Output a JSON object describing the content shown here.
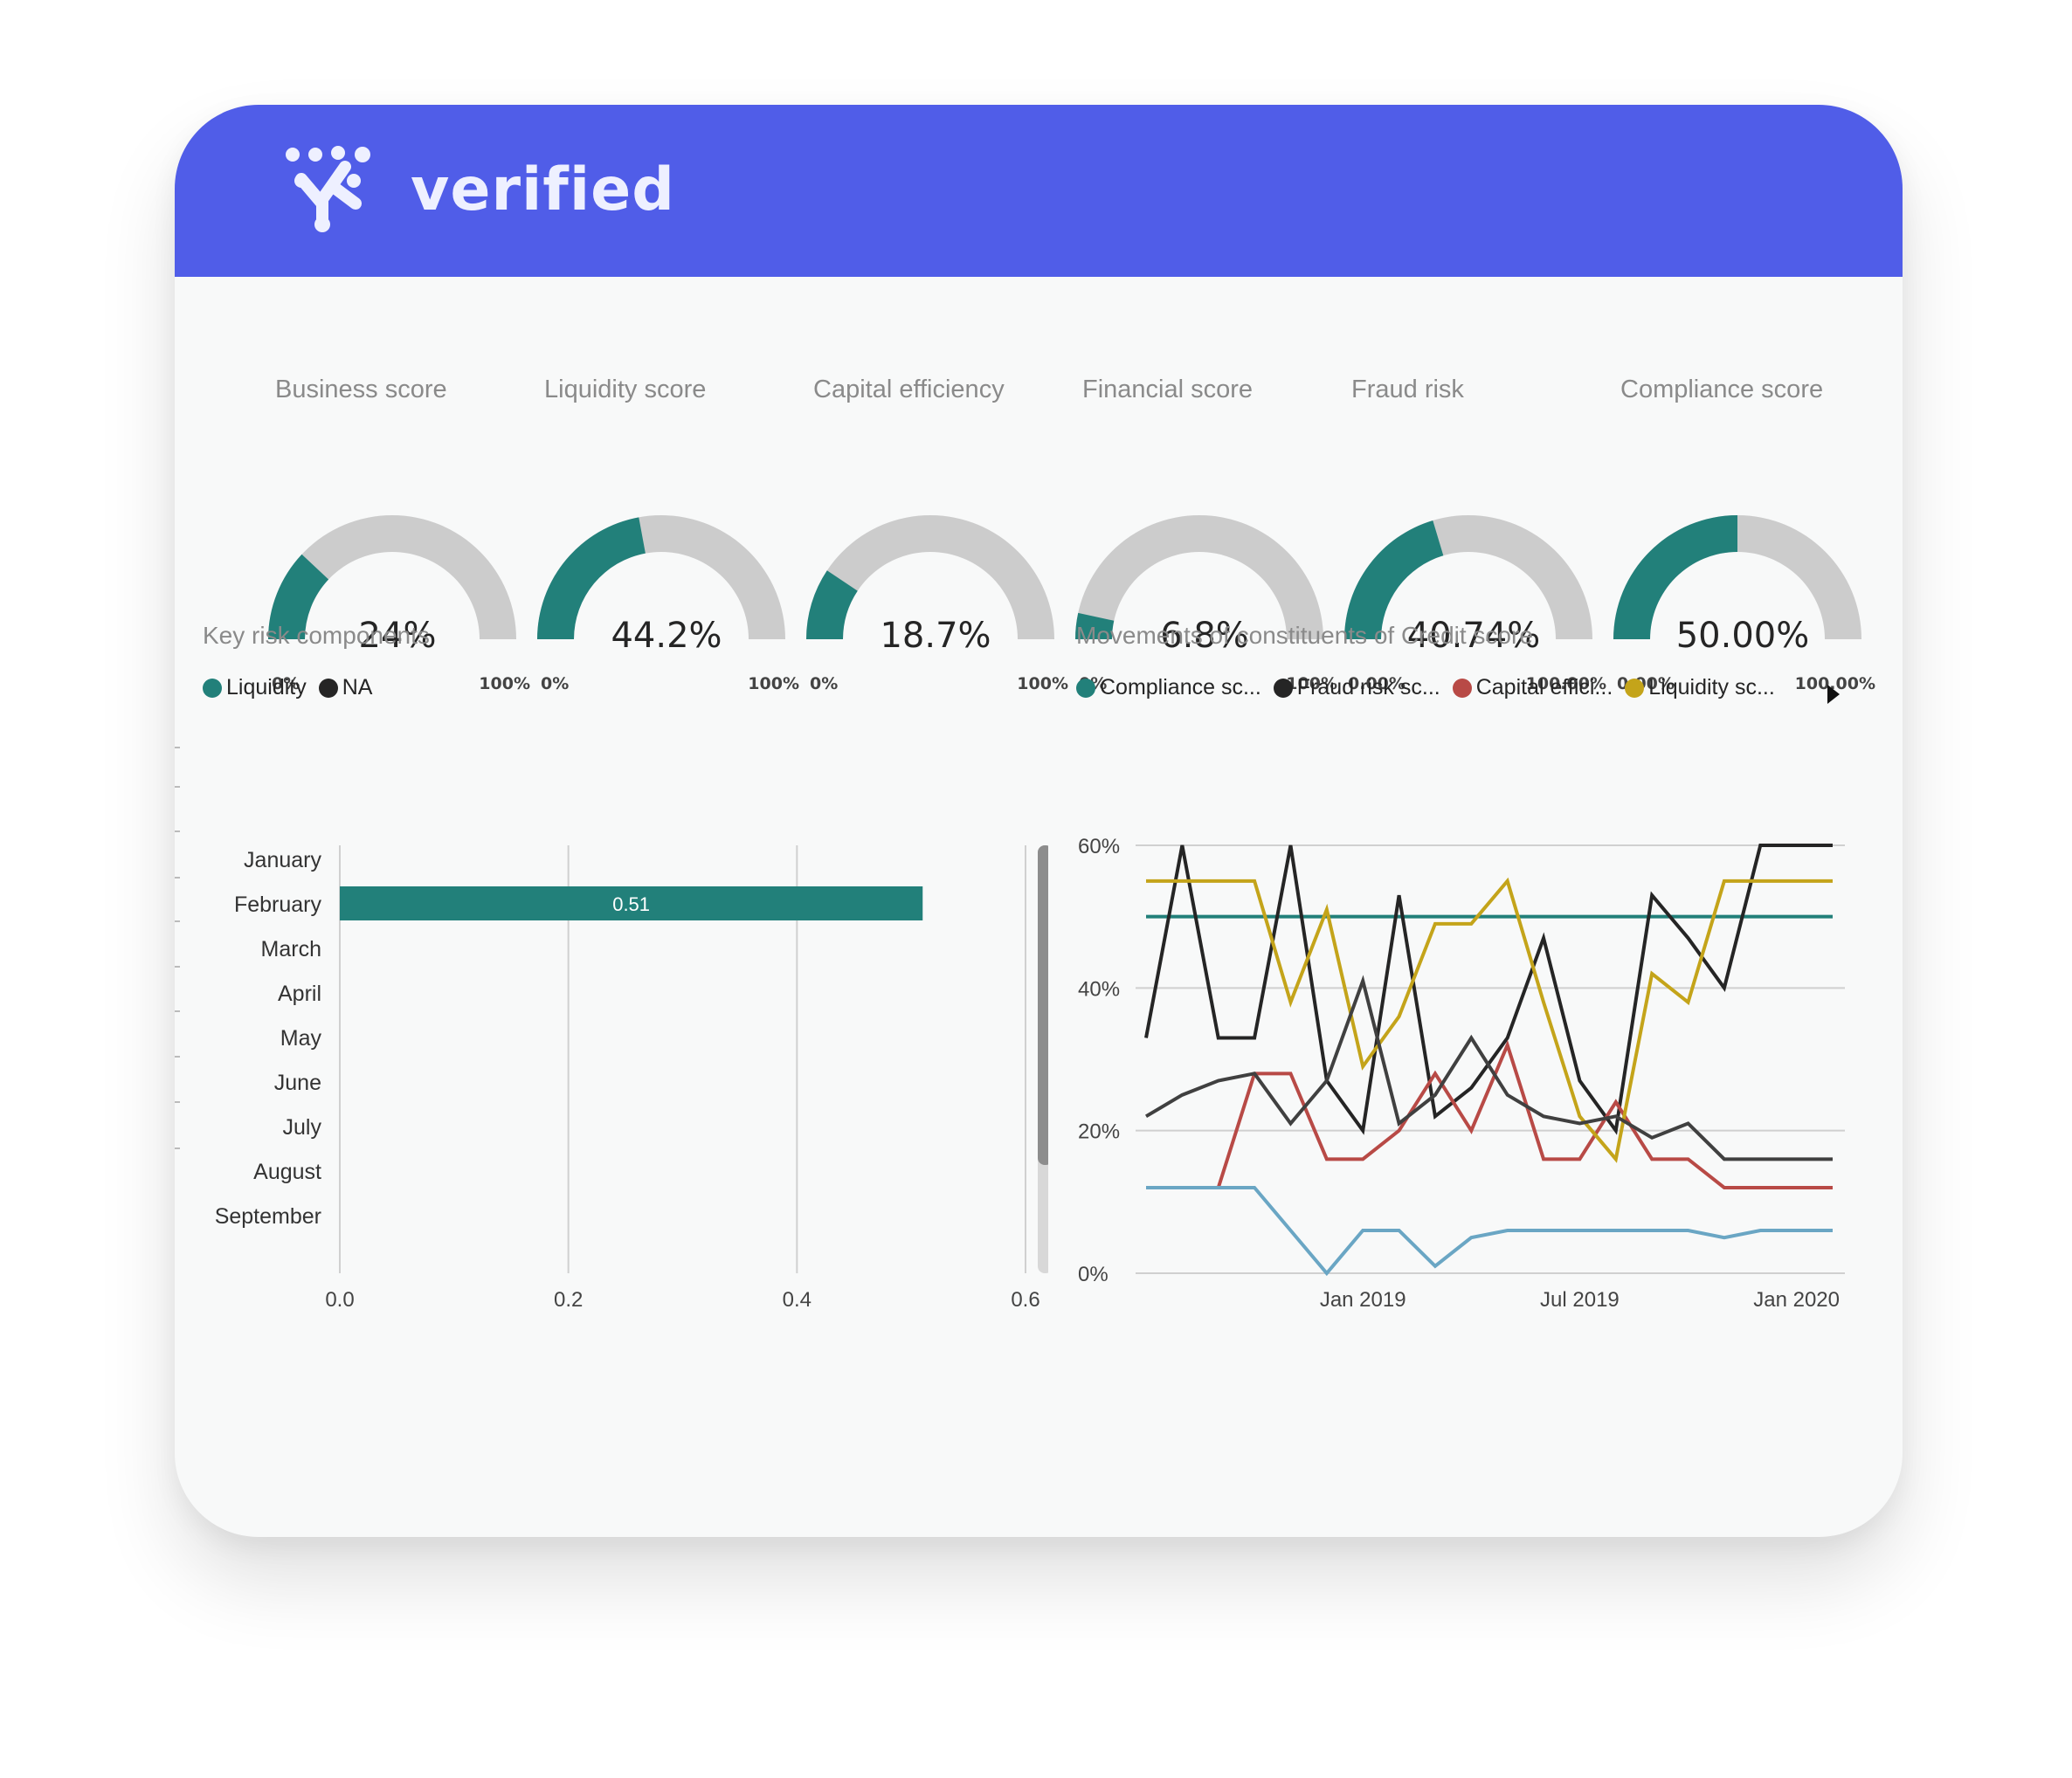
{
  "brand": {
    "name": "verified"
  },
  "colors": {
    "header": "#505de8",
    "teal": "#22807a",
    "track": "#cccccc"
  },
  "gauges": [
    {
      "title": "Business score",
      "value_label": "24%",
      "fraction": 0.24,
      "min_label": "0%",
      "max_label": "100%"
    },
    {
      "title": "Liquidity score",
      "value_label": "44.2%",
      "fraction": 0.442,
      "min_label": "0%",
      "max_label": "100%"
    },
    {
      "title": "Capital efficiency",
      "value_label": "18.7%",
      "fraction": 0.187,
      "min_label": "0%",
      "max_label": "100%"
    },
    {
      "title": "Financial score",
      "value_label": "6.8%",
      "fraction": 0.068,
      "min_label": "0%",
      "max_label": "100%"
    },
    {
      "title": "Fraud risk",
      "value_label": "40.74%",
      "fraction": 0.4074,
      "min_label": "0.00%",
      "max_label": "100.00%"
    },
    {
      "title": "Compliance score",
      "value_label": "50.00%",
      "fraction": 0.5,
      "min_label": "0.00%",
      "max_label": "100.00%"
    }
  ],
  "key_risk": {
    "title": "Key risk components",
    "legend": [
      {
        "label": "Liquidity",
        "color": "#22807a"
      },
      {
        "label": "NA",
        "color": "#252525"
      }
    ]
  },
  "movements": {
    "title": "Movements of constituents of Credit score",
    "legend": [
      {
        "label": "Compliance sc...",
        "color": "#22807a"
      },
      {
        "label": "Fraud risk sc...",
        "color": "#252525"
      },
      {
        "label": "Capital effici...",
        "color": "#b84a46"
      },
      {
        "label": "Liquidity sc...",
        "color": "#c4a41a"
      }
    ]
  },
  "chart_data": [
    {
      "type": "bar",
      "orientation": "horizontal",
      "categories": [
        "January",
        "February",
        "March",
        "April",
        "May",
        "June",
        "July",
        "August",
        "September"
      ],
      "series": [
        {
          "name": "Liquidity",
          "color": "#22807a",
          "values": [
            null,
            0.51,
            null,
            null,
            null,
            null,
            null,
            null,
            null
          ]
        }
      ],
      "data_labels": [
        "0.51"
      ],
      "xlim": [
        0,
        0.6
      ],
      "xticks": [
        "0.0",
        "0.2",
        "0.4",
        "0.6"
      ],
      "grid": true
    },
    {
      "type": "line",
      "x": [
        "2018-07",
        "2018-08",
        "2018-09",
        "2018-10",
        "2018-11",
        "2018-12",
        "2019-01",
        "2019-02",
        "2019-03",
        "2019-04",
        "2019-05",
        "2019-06",
        "2019-07",
        "2019-08",
        "2019-09",
        "2019-10",
        "2019-11",
        "2019-12",
        "2020-01",
        "2020-02"
      ],
      "xticks": [
        "Jan 2019",
        "Jul 2019",
        "Jan 2020"
      ],
      "yticks": [
        "0%",
        "20%",
        "40%",
        "60%"
      ],
      "ylim": [
        0,
        0.6
      ],
      "grid": true,
      "series": [
        {
          "name": "Compliance sc...",
          "color": "#22807a",
          "values": [
            0.5,
            0.5,
            0.5,
            0.5,
            0.5,
            0.5,
            0.5,
            0.5,
            0.5,
            0.5,
            0.5,
            0.5,
            0.5,
            0.5,
            0.5,
            0.5,
            0.5,
            0.5,
            0.5,
            0.5
          ]
        },
        {
          "name": "Fraud risk sc...",
          "color": "#252525",
          "values": [
            0.33,
            0.6,
            0.33,
            0.33,
            0.6,
            0.27,
            0.2,
            0.53,
            0.22,
            0.26,
            0.33,
            0.47,
            0.27,
            0.2,
            0.53,
            0.47,
            0.4,
            0.6,
            0.6,
            0.6
          ]
        },
        {
          "name": "Capital effici...",
          "color": "#b84a46",
          "values": [
            0.12,
            0.12,
            0.12,
            0.28,
            0.28,
            0.16,
            0.16,
            0.2,
            0.28,
            0.2,
            0.32,
            0.16,
            0.16,
            0.24,
            0.16,
            0.16,
            0.12,
            0.12,
            0.12,
            0.12
          ]
        },
        {
          "name": "Liquidity sc...",
          "color": "#c4a41a",
          "values": [
            0.55,
            0.55,
            0.55,
            0.55,
            0.38,
            0.51,
            0.29,
            0.36,
            0.49,
            0.49,
            0.55,
            0.38,
            0.22,
            0.16,
            0.42,
            0.38,
            0.55,
            0.55,
            0.55,
            0.55
          ]
        },
        {
          "color": "#404040",
          "values": [
            0.22,
            0.25,
            0.27,
            0.28,
            0.21,
            0.27,
            0.41,
            0.21,
            0.25,
            0.33,
            0.25,
            0.22,
            0.21,
            0.22,
            0.19,
            0.21,
            0.16,
            0.16,
            0.16,
            0.16
          ]
        },
        {
          "color": "#6aa6c4",
          "values": [
            0.12,
            0.12,
            0.12,
            0.12,
            0.06,
            0.0,
            0.06,
            0.06,
            0.01,
            0.05,
            0.06,
            0.06,
            0.06,
            0.06,
            0.06,
            0.06,
            0.05,
            0.06,
            0.06,
            0.06
          ]
        }
      ]
    }
  ]
}
